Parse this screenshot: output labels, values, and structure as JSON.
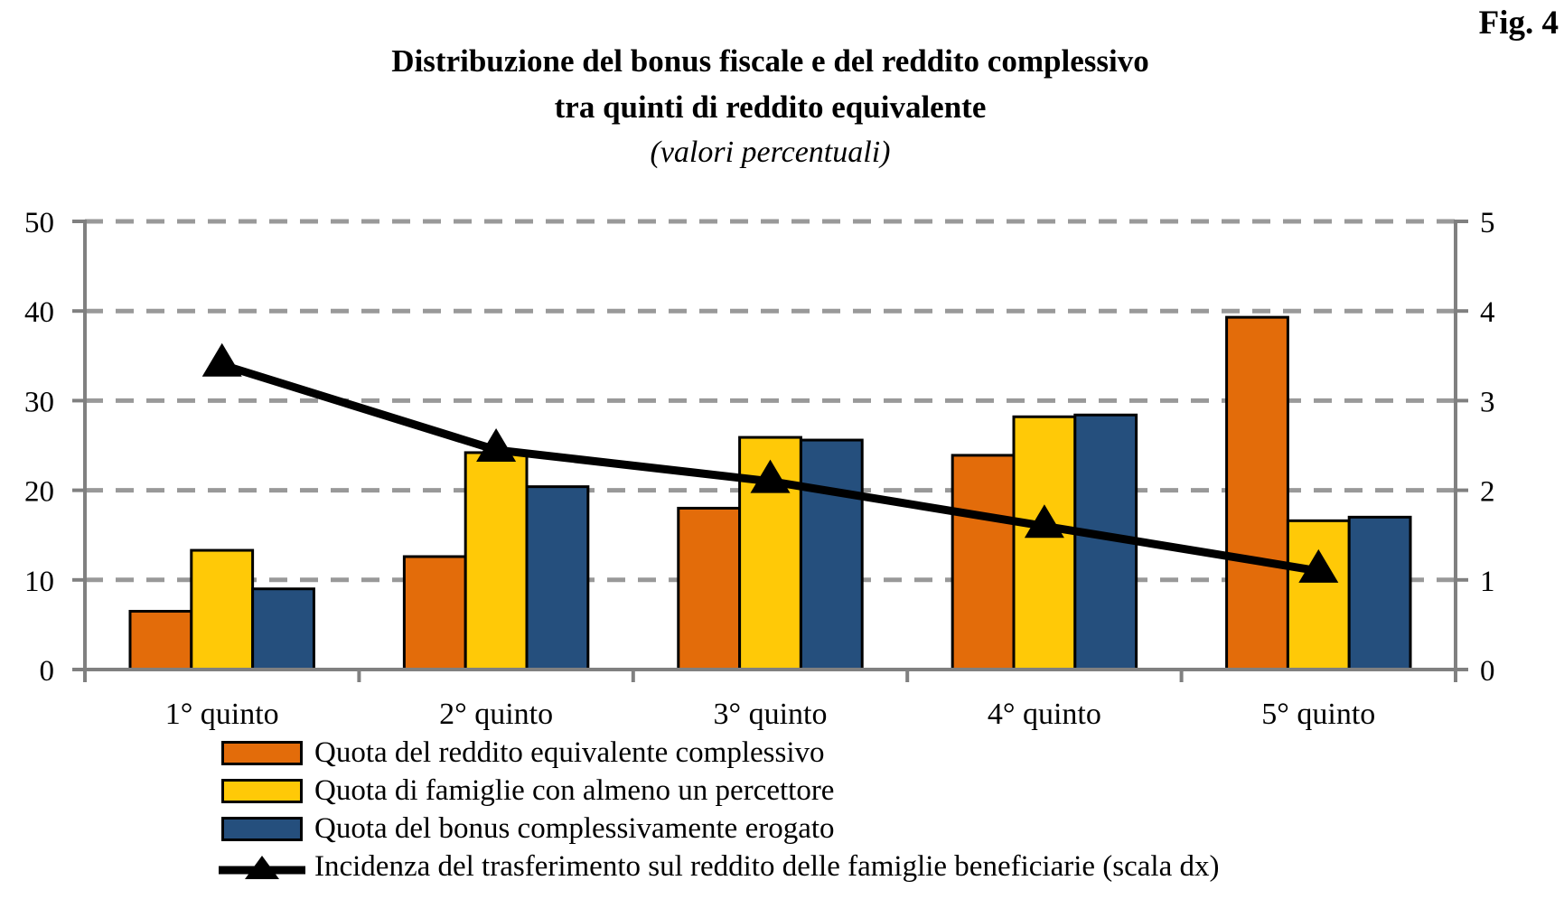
{
  "figure_label": "Fig. 4",
  "title": {
    "line1": "Distribuzione del bonus fiscale e del reddito complessivo",
    "line2": "tra quinti di reddito equivalente",
    "subtitle": "(valori percentuali)"
  },
  "chart_data": {
    "type": "bar",
    "combo": "grouped bars + line on secondary axis",
    "categories": [
      "1° quinto",
      "2° quinto",
      "3° quinto",
      "4° quinto",
      "5° quinto"
    ],
    "series": [
      {
        "name": "Quota del reddito equivalente complessivo",
        "type": "bar",
        "axis": "left",
        "color": "#E36C0A",
        "values": [
          6.5,
          12.6,
          18.0,
          23.9,
          39.3
        ]
      },
      {
        "name": "Quota di famiglie con almeno un percettore",
        "type": "bar",
        "axis": "left",
        "color": "#FFC907",
        "values": [
          13.3,
          24.2,
          25.9,
          28.2,
          16.6
        ]
      },
      {
        "name": "Quota del bonus complessivamente erogato",
        "type": "bar",
        "axis": "left",
        "color": "#254F7D",
        "values": [
          9.0,
          20.4,
          25.6,
          28.4,
          17.0
        ]
      },
      {
        "name": "Incidenza del trasferimento sul reddito delle famiglie beneficiarie (scala dx)",
        "type": "line",
        "axis": "right",
        "color": "#000000",
        "marker": "triangle",
        "values": [
          3.4,
          2.45,
          2.1,
          1.6,
          1.1
        ]
      }
    ],
    "left_axis": {
      "min": 0,
      "max": 50,
      "ticks": [
        0,
        10,
        20,
        30,
        40,
        50
      ]
    },
    "right_axis": {
      "min": 0,
      "max": 5,
      "ticks": [
        0,
        1,
        2,
        3,
        4,
        5
      ]
    },
    "grid": {
      "horizontal": true,
      "style": "dashed",
      "color": "#999999"
    },
    "axis_color": "#808080",
    "bar_border_color": "#000000",
    "legend_position": "bottom-left"
  }
}
